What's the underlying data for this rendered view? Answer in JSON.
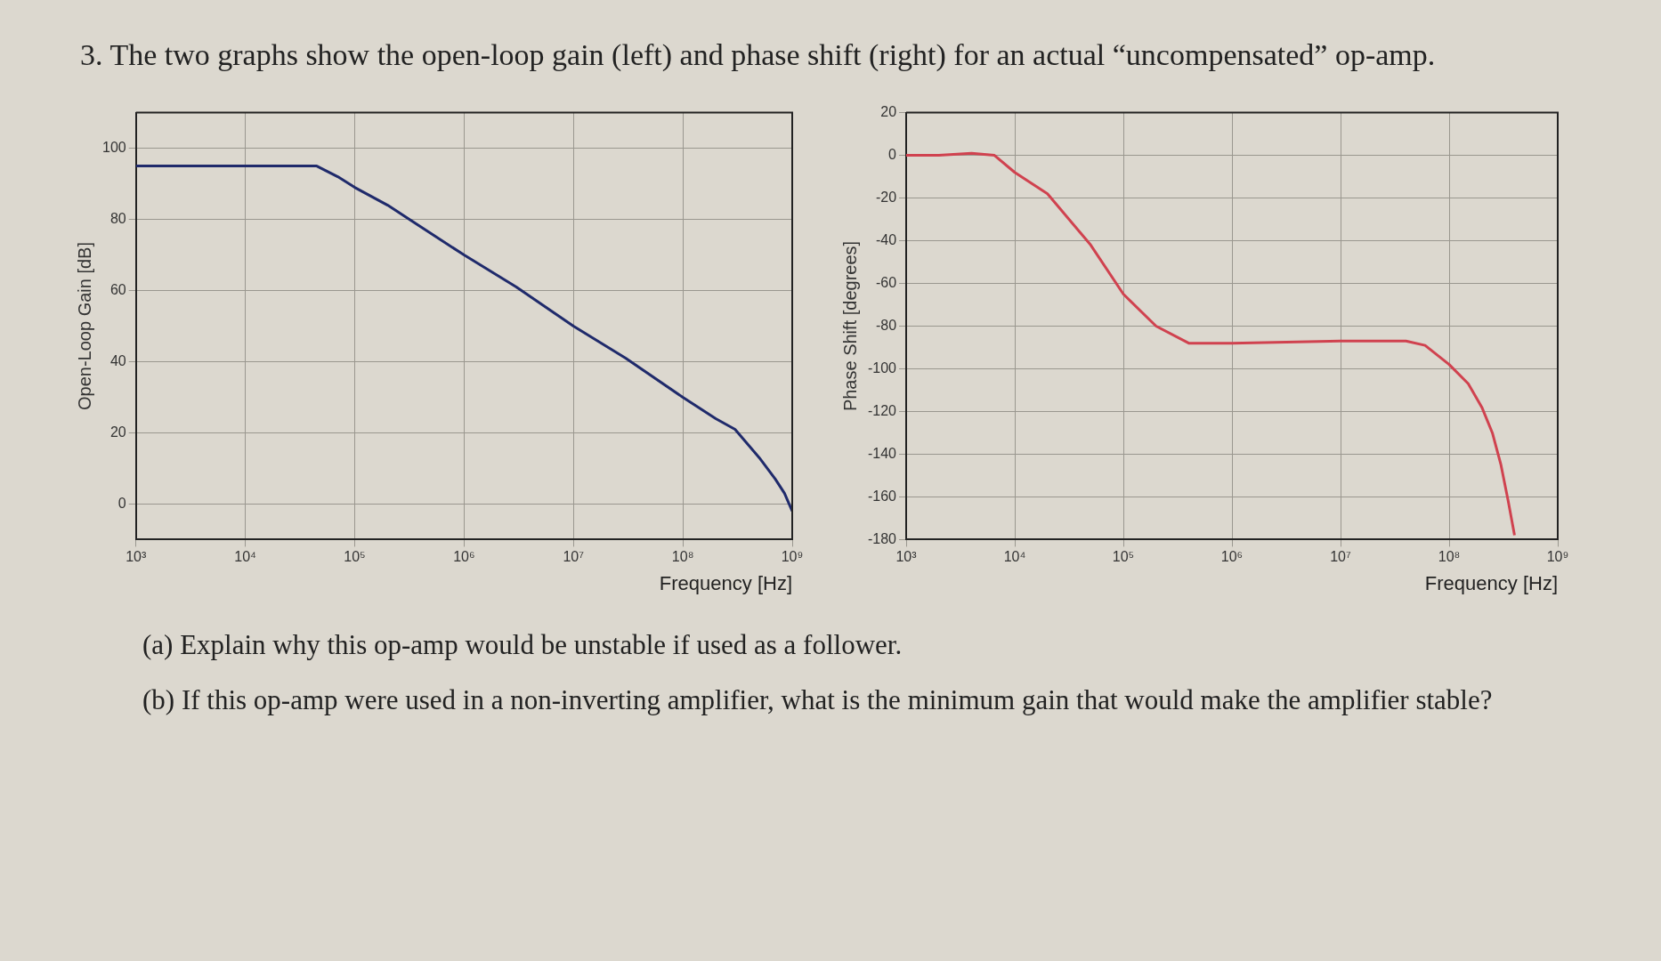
{
  "chart_data": [
    {
      "type": "line",
      "title": "3. The two graphs show the open-loop gain (left) and phase shift (right) for an actual “uncompensated” op-amp.",
      "xlabel": "Frequency [Hz]",
      "ylabel": "Open-Loop Gain [dB]",
      "log": "x",
      "grid": true,
      "legend": false,
      "marker": "none",
      "xlim": [
        1000,
        1000000000
      ],
      "xticks": [
        {
          "value": 1000,
          "label": "10³"
        },
        {
          "value": 10000,
          "label": "10⁴"
        },
        {
          "value": 100000,
          "label": "10⁵"
        },
        {
          "value": 1000000,
          "label": "10⁶"
        },
        {
          "value": 10000000,
          "label": "10⁷"
        },
        {
          "value": 100000000,
          "label": "10⁸"
        },
        {
          "value": 1000000000,
          "label": "10⁹"
        }
      ],
      "ylim": [
        -10,
        110
      ],
      "yticks": [
        0,
        20,
        40,
        60,
        80,
        100
      ],
      "series": [
        {
          "color": "#1f2a6b",
          "x": [
            1000,
            10000,
            45000,
            70000,
            100000,
            200000,
            500000,
            1000000,
            3000000,
            10000000,
            30000000,
            100000000,
            200000000,
            300000000,
            500000000,
            700000000,
            850000000,
            1000000000
          ],
          "values": [
            95,
            95,
            95,
            92,
            89,
            84,
            76,
            70,
            61,
            50,
            41,
            30,
            24,
            21,
            13,
            7,
            3,
            -2
          ]
        }
      ]
    },
    {
      "type": "line",
      "xlabel": "Frequency [Hz]",
      "ylabel": "Phase Shift [degrees]",
      "log": "x",
      "grid": true,
      "legend": false,
      "marker": "none",
      "annotations": [
        "(a) Explain why this op-amp would be unstable if used as a follower.",
        "(b) If this op-amp were used in a non-inverting amplifier, what is the minimum gain that would make the amplifier stable?"
      ],
      "xlim": [
        1000,
        1000000000
      ],
      "xticks": [
        {
          "value": 1000,
          "label": "10³"
        },
        {
          "value": 10000,
          "label": "10⁴"
        },
        {
          "value": 100000,
          "label": "10⁵"
        },
        {
          "value": 1000000,
          "label": "10⁶"
        },
        {
          "value": 10000000,
          "label": "10⁷"
        },
        {
          "value": 100000000,
          "label": "10⁸"
        },
        {
          "value": 1000000000,
          "label": "10⁹"
        }
      ],
      "ylim": [
        -180,
        20
      ],
      "yticks": [
        -180,
        -160,
        -140,
        -120,
        -100,
        -80,
        -60,
        -40,
        -20,
        0,
        20
      ],
      "series": [
        {
          "color": "#d0424f",
          "x": [
            1000,
            2000,
            4000,
            6500,
            10000,
            20000,
            50000,
            100000,
            200000,
            400000,
            1000000,
            10000000,
            40000000,
            60000000,
            100000000,
            150000000,
            200000000,
            250000000,
            300000000,
            350000000,
            400000000
          ],
          "values": [
            0,
            0,
            1,
            0,
            -8,
            -18,
            -42,
            -65,
            -80,
            -88,
            -88,
            -87,
            -87,
            -89,
            -98,
            -107,
            -118,
            -130,
            -145,
            -162,
            -178
          ]
        }
      ]
    }
  ]
}
